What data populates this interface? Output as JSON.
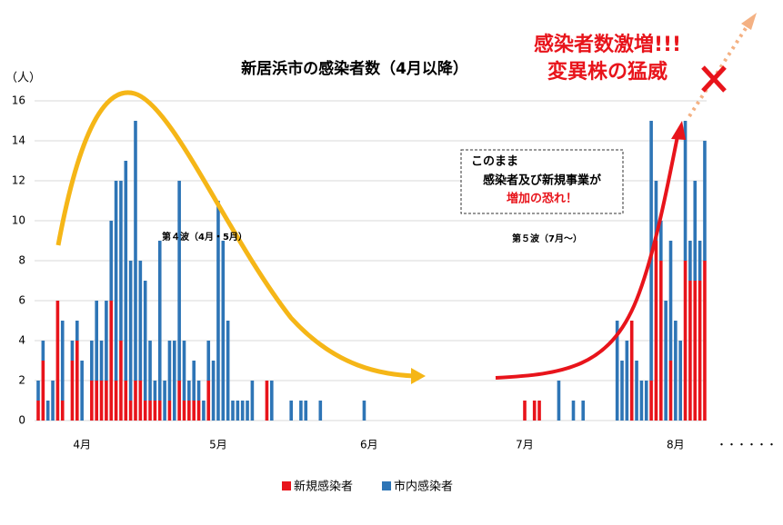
{
  "chart_data": {
    "type": "stacked_bar",
    "title": "新居浜市の感染者数（4月以降）",
    "y_axis_label": "（人）",
    "annotations": {
      "wave4": "第４波（4月・5月）",
      "wave5": "第５波（7月～）",
      "warning": [
        "このまま",
        "感染者及び新規事業が",
        "増加の恐れ！"
      ],
      "headline": [
        "感染者数激増!!!",
        "変異株の猛威"
      ],
      "ellipsis": "・・・・・・"
    },
    "categories": [
      null,
      null,
      null,
      null,
      null,
      null,
      null,
      null,
      null,
      "4月",
      null,
      null,
      null,
      null,
      null,
      null,
      null,
      null,
      null,
      null,
      null,
      null,
      null,
      null,
      null,
      null,
      null,
      null,
      null,
      null,
      null,
      null,
      null,
      null,
      null,
      null,
      null,
      "5月",
      null,
      null,
      null,
      null,
      null,
      null,
      null,
      null,
      null,
      null,
      null,
      null,
      null,
      null,
      null,
      null,
      null,
      null,
      null,
      null,
      null,
      null,
      null,
      null,
      null,
      null,
      null,
      null,
      null,
      null,
      "6月",
      null,
      null,
      null,
      null,
      null,
      null,
      null,
      null,
      null,
      null,
      null,
      null,
      null,
      null,
      null,
      null,
      null,
      null,
      null,
      null,
      null,
      null,
      null,
      null,
      null,
      null,
      null,
      null,
      null,
      null,
      null,
      "7月",
      null,
      null,
      null,
      null,
      null,
      null,
      null,
      null,
      null,
      null,
      null,
      null,
      null,
      null,
      null,
      null,
      null,
      null,
      null,
      null,
      null,
      null,
      null,
      null,
      null,
      null,
      null,
      null,
      null,
      null,
      "8月",
      null,
      null,
      null,
      null,
      null,
      null
    ],
    "series": [
      {
        "name": "新規感染者",
        "color": "#e8141b",
        "values": [
          1,
          3,
          0,
          0,
          6,
          1,
          0,
          3,
          4,
          0,
          0,
          2,
          2,
          2,
          2,
          6,
          2,
          4,
          2,
          1,
          2,
          2,
          1,
          1,
          1,
          1,
          0,
          1,
          0,
          2,
          1,
          1,
          1,
          1,
          0,
          2,
          0,
          0,
          0,
          0,
          0,
          0,
          0,
          0,
          0,
          0,
          0,
          2,
          0,
          0,
          0,
          0,
          0,
          0,
          0,
          0,
          0,
          0,
          0,
          0,
          0,
          0,
          0,
          0,
          0,
          0,
          0,
          0,
          0,
          0,
          0,
          0,
          0,
          0,
          0,
          0,
          0,
          0,
          0,
          0,
          0,
          0,
          0,
          0,
          0,
          0,
          0,
          0,
          0,
          0,
          0,
          0,
          0,
          0,
          0,
          0,
          0,
          0,
          0,
          0,
          1,
          0,
          1,
          1,
          0,
          0,
          0,
          0,
          0,
          0,
          0,
          0,
          0,
          0,
          0,
          0,
          0,
          0,
          0,
          0,
          0,
          0,
          5,
          0,
          0,
          0,
          2,
          9,
          8,
          0,
          3,
          0,
          0,
          8,
          7,
          7,
          7,
          8
        ]
      },
      {
        "name": "市内感染者",
        "color": "#2e75b6",
        "values": [
          1,
          1,
          1,
          2,
          0,
          4,
          0,
          1,
          1,
          3,
          0,
          2,
          4,
          2,
          4,
          4,
          10,
          8,
          11,
          7,
          13,
          6,
          6,
          3,
          1,
          8,
          2,
          3,
          4,
          10,
          3,
          1,
          2,
          1,
          1,
          2,
          3,
          11,
          9,
          5,
          1,
          1,
          1,
          1,
          2,
          0,
          0,
          0,
          2,
          0,
          0,
          0,
          1,
          0,
          1,
          1,
          0,
          0,
          1,
          0,
          0,
          0,
          0,
          0,
          0,
          0,
          0,
          1,
          0,
          0,
          0,
          0,
          0,
          0,
          0,
          0,
          0,
          0,
          0,
          0,
          0,
          0,
          0,
          0,
          0,
          0,
          0,
          0,
          0,
          0,
          0,
          0,
          0,
          0,
          0,
          0,
          0,
          0,
          0,
          0,
          0,
          0,
          0,
          0,
          0,
          0,
          0,
          2,
          0,
          0,
          1,
          0,
          1,
          0,
          0,
          0,
          0,
          0,
          0,
          5,
          3,
          4,
          0,
          3,
          2,
          2,
          13,
          3,
          2,
          6,
          6,
          5,
          4,
          7,
          2,
          5,
          2,
          6
        ]
      }
    ],
    "ylim": [
      0,
      16
    ],
    "yticks": [
      0,
      2,
      4,
      6,
      8,
      10,
      12,
      14,
      16
    ],
    "grid": true,
    "legend": "bottom"
  }
}
